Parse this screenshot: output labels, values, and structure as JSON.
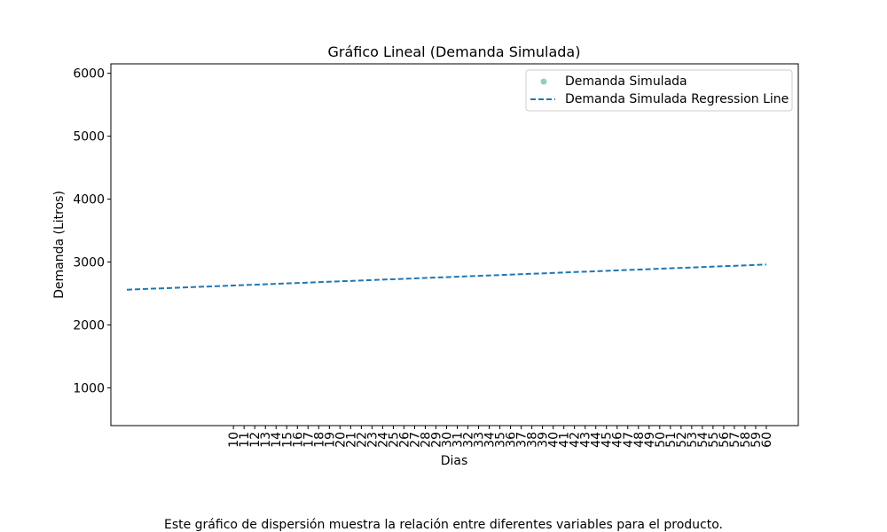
{
  "chart_data": {
    "type": "scatter",
    "title": "Gráfico Lineal (Demanda Simulada)",
    "xlabel": "Dias",
    "ylabel": "Demanda (Litros)",
    "x_ticks": [
      10,
      11,
      12,
      13,
      14,
      15,
      16,
      17,
      18,
      19,
      20,
      21,
      22,
      23,
      24,
      25,
      26,
      27,
      28,
      29,
      30,
      31,
      32,
      33,
      34,
      35,
      36,
      37,
      38,
      39,
      40,
      41,
      42,
      43,
      44,
      45,
      46,
      47,
      48,
      49,
      50,
      51,
      52,
      53,
      54,
      55,
      56,
      57,
      58,
      59,
      60
    ],
    "y_ticks": [
      1000,
      2000,
      3000,
      4000,
      5000,
      6000
    ],
    "xlim": [
      -1.5,
      63
    ],
    "ylim": [
      400,
      6150
    ],
    "grid": false,
    "legend_position": "top-right",
    "series": [
      {
        "name": "Demanda Simulada",
        "kind": "scatter",
        "color": "#8ecfc9",
        "points": []
      },
      {
        "name": "Demanda Simulada Regression Line",
        "kind": "line",
        "style": "dashed",
        "color": "#1f77b4",
        "x": [
          0,
          60
        ],
        "y": [
          2560,
          2960
        ]
      }
    ]
  },
  "caption": "Este gráfico de dispersión muestra la relación entre diferentes variables para el producto."
}
